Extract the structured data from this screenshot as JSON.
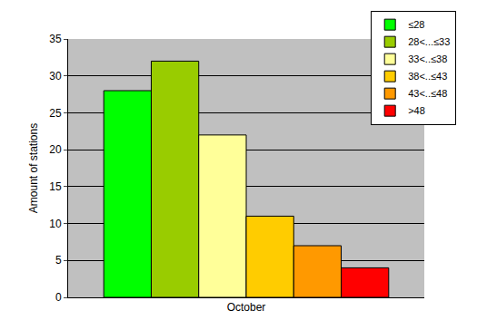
{
  "chart_data": {
    "type": "bar",
    "categories": [
      "October"
    ],
    "series": [
      {
        "name": "≤28",
        "color": "#00ff00",
        "values": [
          28
        ]
      },
      {
        "name": "28<...≤33",
        "color": "#99cc00",
        "values": [
          32
        ]
      },
      {
        "name": "33<..≤38",
        "color": "#ffff99",
        "values": [
          22
        ]
      },
      {
        "name": "38<..≤43",
        "color": "#ffcc00",
        "values": [
          11
        ]
      },
      {
        "name": "43<..≤48",
        "color": "#ff9900",
        "values": [
          7
        ]
      },
      {
        "name": ">48",
        "color": "#ff0000",
        "values": [
          4
        ]
      }
    ],
    "y_label": "Amount of stations",
    "ylim": [
      0,
      35
    ],
    "yticks": [
      0,
      5,
      10,
      15,
      20,
      25,
      30,
      35
    ],
    "grid": true,
    "legend": "top right"
  }
}
